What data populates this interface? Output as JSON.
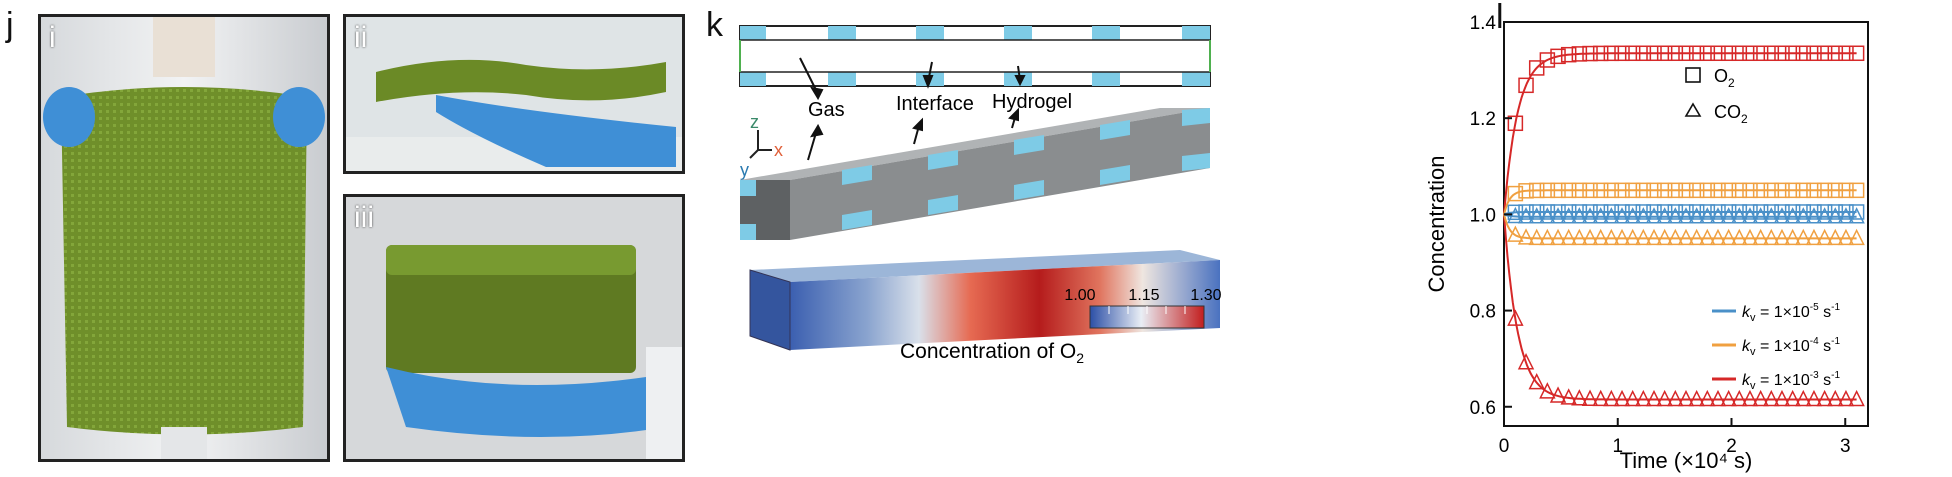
{
  "panel_j": {
    "letter": "j",
    "photos": [
      {
        "label": "i"
      },
      {
        "label": "ii"
      },
      {
        "label": "iii"
      }
    ]
  },
  "panel_k": {
    "letter": "k",
    "labels": {
      "gas": "Gas",
      "interface": "Interface",
      "hydrogel": "Hydrogel"
    },
    "axes": {
      "z": "z",
      "x": "x",
      "y": "y"
    },
    "colorbar": {
      "title_prefix": "Concentration of O",
      "title_sub": "2",
      "ticks": [
        "1.00",
        "1.15",
        "1.30"
      ],
      "min": 1.0,
      "max": 1.3
    },
    "colors": {
      "gas": "#7ecbe6",
      "hydrogel": "#8a8d8f",
      "low": "#3b5fb0",
      "high": "#b51c1c"
    }
  },
  "panel_l": {
    "letter": "l",
    "chart_data": {
      "type": "scatter",
      "xlabel": "Time (×10⁴ s)",
      "ylabel": "Concentration",
      "xlim": [
        0,
        3.2
      ],
      "ylim": [
        0.56,
        1.4
      ],
      "xticks": [
        "0",
        "1",
        "2",
        "3"
      ],
      "yticks": [
        "0.6",
        "0.8",
        "1.0",
        "1.2",
        "1.4"
      ],
      "legend_markers": [
        {
          "symbol": "square",
          "label": "O",
          "sub": "2"
        },
        {
          "symbol": "triangle",
          "label": "CO",
          "sub": "2"
        }
      ],
      "legend_lines": [
        {
          "prefix": "k",
          "sub": "v",
          "text": " = 1×10",
          "exp": "-5",
          "unit": " s",
          "unit_exp": "-1",
          "color": "#4a90c8"
        },
        {
          "prefix": "k",
          "sub": "v",
          "text": " = 1×10",
          "exp": "-4",
          "unit": " s",
          "unit_exp": "-1",
          "color": "#f0a040"
        },
        {
          "prefix": "k",
          "sub": "v",
          "text": " = 1×10",
          "exp": "-3",
          "unit": " s",
          "unit_exp": "-1",
          "color": "#d62828"
        }
      ],
      "series": [
        {
          "kv": "1e-3",
          "gas": "O2",
          "color": "#d62828",
          "start": 1.0,
          "end": 1.335,
          "tau": 0.12
        },
        {
          "kv": "1e-3",
          "gas": "CO2",
          "color": "#d62828",
          "start": 1.0,
          "end": 0.615,
          "tau": 0.12
        },
        {
          "kv": "1e-4",
          "gas": "O2",
          "color": "#f0a040",
          "start": 1.0,
          "end": 1.05,
          "tau": 0.05
        },
        {
          "kv": "1e-4",
          "gas": "CO2",
          "color": "#f0a040",
          "start": 1.0,
          "end": 0.95,
          "tau": 0.05
        },
        {
          "kv": "1e-5",
          "gas": "O2",
          "color": "#4a90c8",
          "start": 1.0,
          "end": 1.005,
          "tau": 0.05
        },
        {
          "kv": "1e-5",
          "gas": "CO2",
          "color": "#4a90c8",
          "start": 1.0,
          "end": 0.995,
          "tau": 0.05
        }
      ],
      "grid": false
    }
  }
}
